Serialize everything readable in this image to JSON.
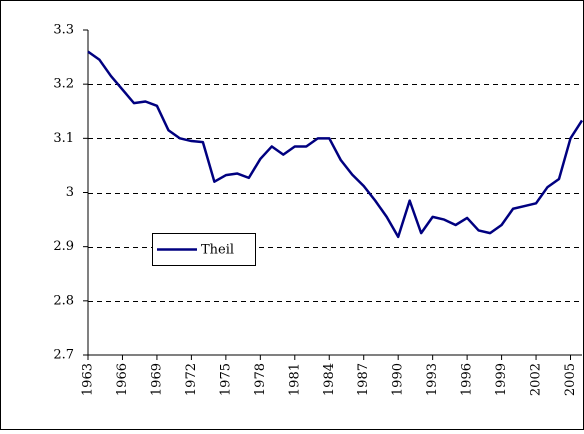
{
  "chart_data": {
    "type": "line",
    "x": [
      1963,
      1964,
      1965,
      1966,
      1967,
      1968,
      1969,
      1970,
      1971,
      1972,
      1973,
      1974,
      1975,
      1976,
      1977,
      1978,
      1979,
      1980,
      1981,
      1982,
      1983,
      1984,
      1985,
      1986,
      1987,
      1988,
      1989,
      1990,
      1991,
      1992,
      1993,
      1994,
      1995,
      1996,
      1997,
      1998,
      1999,
      2000,
      2001,
      2002,
      2003,
      2004,
      2005,
      2006
    ],
    "series": [
      {
        "name": "Theil",
        "color": "#000080",
        "values": [
          3.26,
          3.245,
          3.215,
          3.19,
          3.165,
          3.168,
          3.16,
          3.115,
          3.1,
          3.095,
          3.093,
          3.02,
          3.032,
          3.035,
          3.027,
          3.062,
          3.085,
          3.07,
          3.085,
          3.085,
          3.1,
          3.1,
          3.06,
          3.033,
          3.012,
          2.985,
          2.955,
          2.918,
          2.985,
          2.925,
          2.955,
          2.95,
          2.94,
          2.953,
          2.93,
          2.925,
          2.94,
          2.97,
          2.975,
          2.98,
          3.01,
          3.025,
          3.1,
          3.133
        ]
      }
    ],
    "xlim": [
      1963,
      2006
    ],
    "xticks": [
      1963,
      1966,
      1969,
      1972,
      1975,
      1978,
      1981,
      1984,
      1987,
      1990,
      1993,
      1996,
      1999,
      2002,
      2005
    ],
    "ylim": [
      2.7,
      3.3
    ],
    "yticks": [
      2.7,
      2.8,
      2.9,
      3,
      3.1,
      3.2,
      3.3
    ],
    "grid": true
  }
}
